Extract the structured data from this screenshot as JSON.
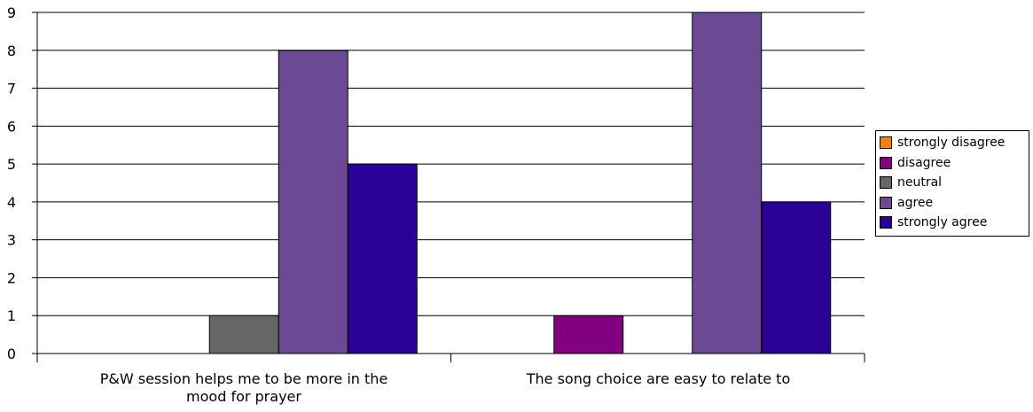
{
  "chart_data": {
    "type": "bar",
    "categories": [
      "P&W session helps me to be more in the mood for prayer",
      "The song choice are easy to relate to"
    ],
    "series": [
      {
        "name": "strongly disagree",
        "color": "#ff7f0e",
        "values": [
          0,
          0
        ]
      },
      {
        "name": "disagree",
        "color": "#800080",
        "values": [
          0,
          1
        ]
      },
      {
        "name": "neutral",
        "color": "#666666",
        "values": [
          1,
          0
        ]
      },
      {
        "name": "agree",
        "color": "#6b4a93",
        "values": [
          8,
          9
        ]
      },
      {
        "name": "strongly agree",
        "color": "#2a0096",
        "values": [
          5,
          4
        ]
      }
    ],
    "ylim": [
      0,
      9
    ],
    "yticks": [
      0,
      1,
      2,
      3,
      4,
      5,
      6,
      7,
      8,
      9
    ],
    "grid": true,
    "legend": "right"
  }
}
